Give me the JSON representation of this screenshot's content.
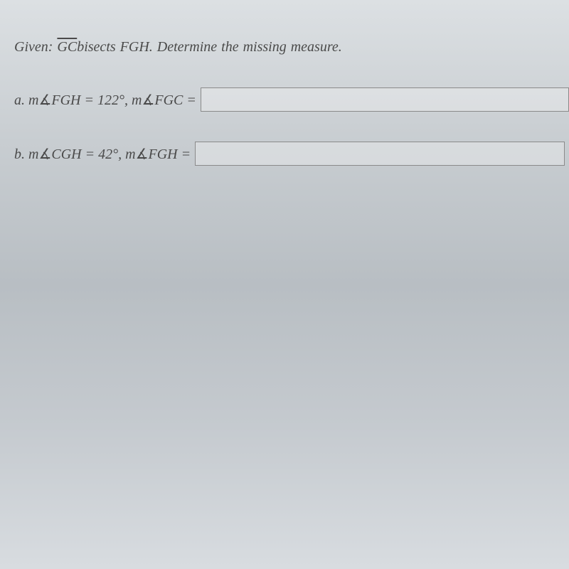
{
  "prompt": {
    "given_prefix": "Given: ",
    "gc": "GC",
    "bisects_text": "bisects ",
    "fgh": "FGH",
    "determine": ".  Determine the missing measure."
  },
  "question_a": {
    "label": "a. ",
    "m1": "m",
    "sym1": "∡",
    "a1": "FGH",
    "eq1": " = 122°, ",
    "m2": "m",
    "sym2": "∡",
    "a2": "FGC",
    "eqend": " = ",
    "value": ""
  },
  "question_b": {
    "label": "b. ",
    "m1": "m",
    "sym1": "∡",
    "a1": "CGH",
    "eq1": " = 42°, ",
    "m2": "m",
    "sym2": "∡",
    "a2": "FGH",
    "eqend": " = ",
    "value": ""
  },
  "colors": {
    "text": "#4a4a4a",
    "input_border": "#8a8a8a",
    "input_bg": "rgba(245,245,245,0.35)"
  }
}
